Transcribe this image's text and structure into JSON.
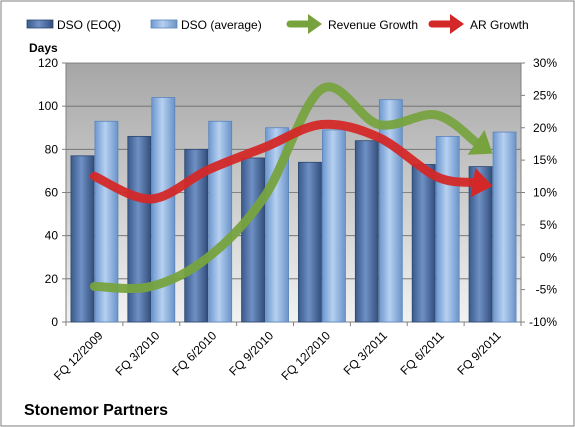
{
  "chart_data": {
    "type": "bar",
    "title": "Stonemor Partners",
    "categories": [
      "FQ 12/2009",
      "FQ 3/2010",
      "FQ 6/2010",
      "FQ 9/2010",
      "FQ 12/2010",
      "FQ 3/2011",
      "FQ 6/2011",
      "FQ 9/2011"
    ],
    "ylabel": "Days",
    "ylim": [
      0,
      120
    ],
    "yticks": [
      "0",
      "20",
      "40",
      "60",
      "80",
      "100",
      "120"
    ],
    "y2lim": [
      -0.1,
      0.3
    ],
    "y2ticks": [
      "-10%",
      "-5%",
      "0%",
      "5%",
      "10%",
      "15%",
      "20%",
      "25%",
      "30%"
    ],
    "legend_position": "top",
    "grid": true,
    "series": [
      {
        "name": "DSO (EOQ)",
        "type": "bar",
        "axis": "left",
        "color": "#4a6fa5",
        "values": [
          77,
          86,
          80,
          76,
          74,
          84,
          73,
          72
        ]
      },
      {
        "name": "DSO (average)",
        "type": "bar",
        "axis": "left",
        "color": "#8db3e2",
        "values": [
          93,
          104,
          93,
          90,
          89,
          103,
          86,
          88
        ]
      },
      {
        "name": "Revenue Growth",
        "type": "line",
        "axis": "right",
        "color": "#77a33f",
        "values": [
          -0.045,
          -0.045,
          0.0,
          0.095,
          0.26,
          0.205,
          0.22,
          0.16
        ]
      },
      {
        "name": "AR Growth",
        "type": "line",
        "axis": "right",
        "color": "#d42828",
        "values": [
          0.125,
          0.09,
          0.135,
          0.17,
          0.205,
          0.185,
          0.125,
          0.11
        ]
      }
    ]
  }
}
